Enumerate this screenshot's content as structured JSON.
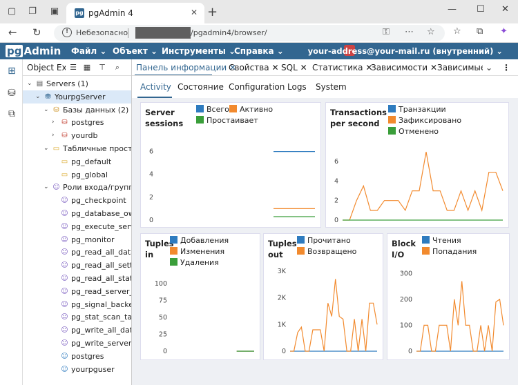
{
  "browser": {
    "tab_title": "pgAdmin 4",
    "tab_favicon": "pg",
    "address_insecure": "Небезопасно",
    "url": "/pgadmin4/browser/"
  },
  "app": {
    "logo_pg": "pg",
    "logo_admin": "Admin",
    "menus": [
      "Файл",
      "Объект",
      "Инструменты",
      "Справка"
    ],
    "user": "your-address@your-mail.ru (внутренний)"
  },
  "explorer": {
    "title": "Object Explorer",
    "tree": [
      {
        "label": "Servers (1)",
        "level": 0,
        "icon": "servers-icon",
        "expanded": true
      },
      {
        "label": "YourpgServer",
        "level": 1,
        "icon": "server-icon",
        "expanded": true,
        "selected": true
      },
      {
        "label": "Базы данных (2)",
        "level": 2,
        "icon": "databases-icon",
        "expanded": true
      },
      {
        "label": "postgres",
        "level": 3,
        "icon": "database-icon",
        "expanded": false
      },
      {
        "label": "yourdb",
        "level": 3,
        "icon": "database-icon",
        "expanded": false
      },
      {
        "label": "Табличные пространства",
        "level": 2,
        "icon": "tablespaces-icon",
        "expanded": true
      },
      {
        "label": "pg_default",
        "level": 3,
        "icon": "tablespace-icon"
      },
      {
        "label": "pg_global",
        "level": 3,
        "icon": "tablespace-icon"
      },
      {
        "label": "Роли входа/группы",
        "level": 2,
        "icon": "roles-icon",
        "expanded": true
      },
      {
        "label": "pg_checkpoint",
        "level": 3,
        "icon": "group-role-icon"
      },
      {
        "label": "pg_database_owner",
        "level": 3,
        "icon": "group-role-icon"
      },
      {
        "label": "pg_execute_server_program",
        "level": 3,
        "icon": "group-role-icon"
      },
      {
        "label": "pg_monitor",
        "level": 3,
        "icon": "group-role-icon"
      },
      {
        "label": "pg_read_all_data",
        "level": 3,
        "icon": "group-role-icon"
      },
      {
        "label": "pg_read_all_settings",
        "level": 3,
        "icon": "group-role-icon"
      },
      {
        "label": "pg_read_all_stats",
        "level": 3,
        "icon": "group-role-icon"
      },
      {
        "label": "pg_read_server_files",
        "level": 3,
        "icon": "group-role-icon"
      },
      {
        "label": "pg_signal_backend",
        "level": 3,
        "icon": "group-role-icon"
      },
      {
        "label": "pg_stat_scan_tables",
        "level": 3,
        "icon": "group-role-icon"
      },
      {
        "label": "pg_write_all_data",
        "level": 3,
        "icon": "group-role-icon"
      },
      {
        "label": "pg_write_server_files",
        "level": 3,
        "icon": "group-role-icon"
      },
      {
        "label": "postgres",
        "level": 3,
        "icon": "login-role-icon"
      },
      {
        "label": "yourpguser",
        "level": 3,
        "icon": "login-role-icon"
      }
    ]
  },
  "panel_tabs": [
    "Панель информации",
    "Свойства",
    "SQL",
    "Статистика",
    "Зависимости",
    "Зависимые"
  ],
  "sub_tabs": [
    "Activity",
    "Состояние",
    "Configuration",
    "Logs",
    "System"
  ],
  "colors": {
    "blue": "#2e7bbf",
    "orange": "#f28a2e",
    "green": "#3a9e3a",
    "accent": "#326690"
  },
  "charts": {
    "server_sessions": {
      "title": "Server sessions",
      "legend": [
        "Всего",
        "Активно",
        "Простаивает"
      ],
      "chart_data": {
        "type": "line",
        "ylim": [
          0,
          7
        ],
        "yticks": [
          "6",
          "4",
          "2",
          "0"
        ],
        "x_points": 20,
        "series": [
          {
            "name": "Всего",
            "color": "#2e7bbf",
            "values": [
              null,
              null,
              null,
              null,
              null,
              null,
              null,
              null,
              null,
              null,
              null,
              null,
              null,
              null,
              6,
              6,
              6,
              6,
              6,
              6
            ]
          },
          {
            "name": "Активно",
            "color": "#f28a2e",
            "values": [
              null,
              null,
              null,
              null,
              null,
              null,
              null,
              null,
              null,
              null,
              null,
              null,
              null,
              null,
              1,
              1,
              1,
              1,
              1,
              1
            ]
          },
          {
            "name": "Простаивает",
            "color": "#3a9e3a",
            "values": [
              null,
              null,
              null,
              null,
              null,
              null,
              null,
              null,
              null,
              null,
              null,
              null,
              null,
              null,
              0.3,
              0.3,
              0.3,
              0.3,
              0.3,
              0.3
            ]
          }
        ]
      }
    },
    "transactions": {
      "title": "Transactions per second",
      "legend": [
        "Транзакции",
        "Зафиксировано",
        "Отменено"
      ],
      "chart_data": {
        "type": "line",
        "ylim": [
          0,
          7.5
        ],
        "yticks": [
          "6",
          "4",
          "2",
          "0"
        ],
        "x_points": 24,
        "series": [
          {
            "name": "Транзакции",
            "color": "#2e7bbf",
            "values": [
              null,
              null,
              null,
              null,
              null,
              null,
              null,
              null,
              null,
              null,
              null,
              null,
              null,
              null,
              null,
              null,
              null,
              null,
              null,
              null,
              null,
              null,
              null,
              null
            ]
          },
          {
            "name": "Зафиксировано",
            "color": "#f28a2e",
            "values": [
              0,
              0,
              2,
              3.5,
              1,
              1,
              2,
              2,
              2,
              1,
              3,
              3,
              7,
              3,
              3,
              1,
              1,
              3,
              1,
              3,
              1,
              4.9,
              4.9,
              3
            ]
          },
          {
            "name": "Отменено",
            "color": "#3a9e3a",
            "values": [
              0,
              0,
              0,
              0,
              0,
              0,
              0,
              0,
              0,
              0,
              0,
              0,
              0,
              0,
              0,
              0,
              0,
              0,
              0,
              0,
              0,
              0,
              0,
              0
            ]
          }
        ]
      }
    },
    "tuples_in": {
      "title": "Tuples in",
      "legend": [
        "Добавления",
        "Изменения",
        "Удаления"
      ],
      "chart_data": {
        "type": "line",
        "ylim": [
          0,
          110
        ],
        "yticks": [
          "100",
          "75",
          "50",
          "25",
          "0"
        ],
        "x_points": 20,
        "series": [
          {
            "name": "Добавления",
            "color": "#2e7bbf",
            "values": [
              null,
              null,
              null,
              null,
              null,
              null,
              null,
              null,
              null,
              null,
              null,
              null,
              null,
              null,
              null,
              0,
              0,
              0,
              0,
              0
            ]
          },
          {
            "name": "Изменения",
            "color": "#f28a2e",
            "values": [
              null,
              null,
              null,
              null,
              null,
              null,
              null,
              null,
              null,
              null,
              null,
              null,
              null,
              null,
              null,
              0,
              0,
              0,
              0,
              0
            ]
          },
          {
            "name": "Удаления",
            "color": "#3a9e3a",
            "values": [
              null,
              null,
              null,
              null,
              null,
              null,
              null,
              null,
              null,
              null,
              null,
              null,
              null,
              null,
              null,
              0,
              0,
              0,
              0,
              0
            ]
          }
        ]
      }
    },
    "tuples_out": {
      "title": "Tuples out",
      "legend": [
        "Прочитано",
        "Возвращено"
      ],
      "chart_data": {
        "type": "line",
        "ylim": [
          0,
          3200
        ],
        "yticks": [
          "3K",
          "2K",
          "1K",
          "0"
        ],
        "x_points": 24,
        "series": [
          {
            "name": "Прочитано",
            "color": "#2e7bbf",
            "values": [
              0,
              0,
              0,
              0,
              0,
              0,
              0,
              0,
              0,
              0,
              0,
              0,
              0,
              0,
              0,
              0,
              0,
              0,
              0,
              0,
              0,
              0,
              0,
              0
            ]
          },
          {
            "name": "Возвращено",
            "color": "#f28a2e",
            "values": [
              0,
              0,
              700,
              900,
              0,
              0,
              800,
              800,
              800,
              0,
              1800,
              1300,
              2700,
              1300,
              1200,
              0,
              0,
              1200,
              0,
              1200,
              0,
              1800,
              1800,
              1000
            ]
          }
        ]
      }
    },
    "block_io": {
      "title": "Block I/O",
      "legend": [
        "Чтения",
        "Попадания"
      ],
      "chart_data": {
        "type": "line",
        "ylim": [
          0,
          330
        ],
        "yticks": [
          "300",
          "200",
          "100",
          "0"
        ],
        "x_points": 24,
        "series": [
          {
            "name": "Чтения",
            "color": "#2e7bbf",
            "values": [
              0,
              0,
              0,
              0,
              0,
              0,
              0,
              0,
              0,
              0,
              0,
              0,
              0,
              0,
              0,
              0,
              0,
              0,
              0,
              0,
              0,
              0,
              0,
              0
            ]
          },
          {
            "name": "Попадания",
            "color": "#f28a2e",
            "values": [
              0,
              0,
              100,
              100,
              0,
              0,
              100,
              100,
              100,
              0,
              200,
              100,
              270,
              100,
              100,
              0,
              0,
              100,
              0,
              100,
              0,
              190,
              200,
              100
            ]
          }
        ]
      }
    }
  }
}
